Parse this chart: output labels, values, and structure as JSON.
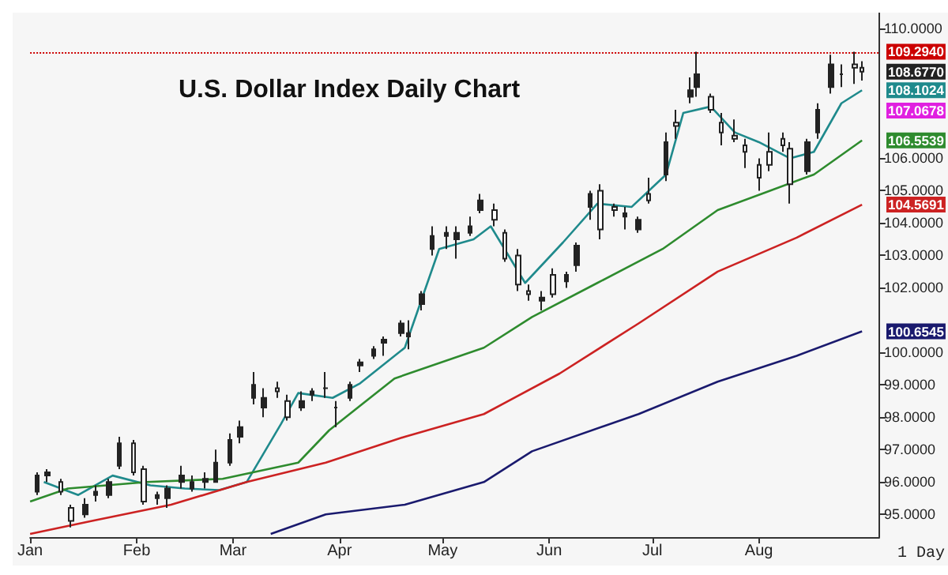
{
  "chart_data": {
    "type": "candlestick",
    "title": "U.S. Dollar Index Daily Chart",
    "series": [
      {
        "color": "#222222",
        "value_labels": [
          null,
          null,
          null,
          null,
          null,
          null,
          null,
          null,
          null,
          null,
          null,
          null,
          null,
          null,
          null,
          null,
          null,
          null,
          null,
          null,
          null,
          null,
          null,
          null,
          null,
          null,
          null,
          null,
          null,
          null,
          null,
          null,
          null,
          null,
          null,
          null,
          null,
          null,
          null,
          null,
          null,
          null,
          null,
          null,
          null,
          null,
          null,
          null,
          null,
          null,
          null,
          null,
          null,
          null,
          null,
          null,
          null,
          null,
          null,
          null,
          null,
          null,
          null,
          null,
          null,
          null,
          null,
          null,
          null,
          "108.6770"
        ],
        "x": [
          "--01-03",
          "--01-06",
          "--01-10",
          "--01-13",
          "--01-17",
          "--01-20",
          "--01-24",
          "--01-27",
          "--01-31",
          "--02-03",
          "--02-07",
          "--02-10",
          "--02-14",
          "--02-17",
          "--02-21",
          "--02-24",
          "--02-28",
          "--03-03",
          "--03-07",
          "--03-10",
          "--03-14",
          "--03-17",
          "--03-21",
          "--03-24",
          "--03-28",
          "--03-31",
          "--04-04",
          "--04-07",
          "--04-11",
          "--04-14",
          "--04-19",
          "--04-21",
          "--04-25",
          "--04-28",
          "--05-02",
          "--05-05",
          "--05-09",
          "--05-12",
          "--05-16",
          "--05-19",
          "--05-23",
          "--05-26",
          "--05-30",
          "--06-02",
          "--06-06",
          "--06-09",
          "--06-13",
          "--06-16",
          "--06-20",
          "--06-23",
          "--06-27",
          "--06-30",
          "--07-05",
          "--07-08",
          "--07-12",
          "--07-14",
          "--07-18",
          "--07-21",
          "--07-25",
          "--07-28",
          "--08-01",
          "--08-04",
          "--08-08",
          "--08-10",
          "--08-15",
          "--08-18",
          "--08-22",
          "--08-25",
          "--08-29",
          "--08-31"
        ],
        "ohlc": [
          [
            95.7,
            96.3,
            95.6,
            96.2
          ],
          [
            96.2,
            96.4,
            96.0,
            96.3
          ],
          [
            96.0,
            96.1,
            95.6,
            95.7
          ],
          [
            95.2,
            95.3,
            94.6,
            94.8
          ],
          [
            95.0,
            95.5,
            94.9,
            95.3
          ],
          [
            95.6,
            95.9,
            95.4,
            95.7
          ],
          [
            95.6,
            96.1,
            95.5,
            96.0
          ],
          [
            96.5,
            97.4,
            96.4,
            97.2
          ],
          [
            97.2,
            97.3,
            96.2,
            96.3
          ],
          [
            96.4,
            96.5,
            95.3,
            95.4
          ],
          [
            95.5,
            95.7,
            95.3,
            95.6
          ],
          [
            95.5,
            95.9,
            95.2,
            95.8
          ],
          [
            96.0,
            96.5,
            95.8,
            96.2
          ],
          [
            95.8,
            96.2,
            95.7,
            96.0
          ],
          [
            96.0,
            96.3,
            95.8,
            96.1
          ],
          [
            96.0,
            97.0,
            96.0,
            96.6
          ],
          [
            96.6,
            97.5,
            96.5,
            97.3
          ],
          [
            97.4,
            97.9,
            97.2,
            97.7
          ],
          [
            98.6,
            99.4,
            98.4,
            99.0
          ],
          [
            98.3,
            98.9,
            98.0,
            98.6
          ],
          [
            98.9,
            99.1,
            98.6,
            98.8
          ],
          [
            98.5,
            98.7,
            97.9,
            98.0
          ],
          [
            98.3,
            98.8,
            98.2,
            98.5
          ],
          [
            98.7,
            98.9,
            98.5,
            98.8
          ],
          [
            98.9,
            99.4,
            98.6,
            98.9
          ],
          [
            98.3,
            98.5,
            97.7,
            98.3
          ],
          [
            98.6,
            99.1,
            98.5,
            99.0
          ],
          [
            99.6,
            99.8,
            99.4,
            99.7
          ],
          [
            99.9,
            100.2,
            99.8,
            100.1
          ],
          [
            100.3,
            100.5,
            99.9,
            100.4
          ],
          [
            100.6,
            101.0,
            100.5,
            100.9
          ],
          [
            100.5,
            101.0,
            100.1,
            100.6
          ],
          [
            101.5,
            101.9,
            101.3,
            101.8
          ],
          [
            103.2,
            103.9,
            103.0,
            103.6
          ],
          [
            103.6,
            103.9,
            103.2,
            103.7
          ],
          [
            103.5,
            103.9,
            102.9,
            103.7
          ],
          [
            103.7,
            104.2,
            103.6,
            103.9
          ],
          [
            104.4,
            104.9,
            104.3,
            104.7
          ],
          [
            104.4,
            104.6,
            103.9,
            104.1
          ],
          [
            103.7,
            103.8,
            102.8,
            102.9
          ],
          [
            103.0,
            103.2,
            101.9,
            102.1
          ],
          [
            101.9,
            102.1,
            101.6,
            101.8
          ],
          [
            101.6,
            101.9,
            101.3,
            101.7
          ],
          [
            102.4,
            102.6,
            101.7,
            101.8
          ],
          [
            102.2,
            102.5,
            102.0,
            102.4
          ],
          [
            102.7,
            103.4,
            102.5,
            103.3
          ],
          [
            104.5,
            105.0,
            104.1,
            104.9
          ],
          [
            105.0,
            105.2,
            103.5,
            103.8
          ],
          [
            104.5,
            104.6,
            104.2,
            104.4
          ],
          [
            104.2,
            104.5,
            103.8,
            104.3
          ],
          [
            103.8,
            104.2,
            103.7,
            104.1
          ],
          [
            104.9,
            105.4,
            104.6,
            104.7
          ],
          [
            105.5,
            106.8,
            105.3,
            106.5
          ],
          [
            107.1,
            107.5,
            106.6,
            107.0
          ],
          [
            107.9,
            108.5,
            107.7,
            108.1
          ],
          [
            108.2,
            109.294,
            107.9,
            108.6
          ],
          [
            107.9,
            108.0,
            107.4,
            107.5
          ],
          [
            107.1,
            107.4,
            106.4,
            106.8
          ],
          [
            106.7,
            107.2,
            106.5,
            106.6
          ],
          [
            106.4,
            106.6,
            105.7,
            106.2
          ],
          [
            105.8,
            106.0,
            105.0,
            105.4
          ],
          [
            106.2,
            106.8,
            105.6,
            105.8
          ],
          [
            106.6,
            106.8,
            106.2,
            106.4
          ],
          [
            106.3,
            106.5,
            104.6,
            105.2
          ],
          [
            105.6,
            106.6,
            105.5,
            106.5
          ],
          [
            106.8,
            107.7,
            106.6,
            107.5
          ],
          [
            108.2,
            109.2,
            108.0,
            108.9
          ],
          [
            108.6,
            108.9,
            108.2,
            108.6
          ],
          [
            108.9,
            109.294,
            108.3,
            108.8
          ],
          [
            108.8,
            109.0,
            108.4,
            108.677
          ]
        ]
      },
      {
        "type": "line",
        "color": "#1f8a8c",
        "x": [
          "--01-05",
          "--01-15",
          "--01-25",
          "--02-05",
          "--02-15",
          "--02-25",
          "--03-05",
          "--03-15",
          "--03-20",
          "--03-30",
          "--04-07",
          "--04-20",
          "--04-30",
          "--05-10",
          "--05-15",
          "--05-25",
          "--06-05",
          "--06-15",
          "--06-25",
          "--07-05",
          "--07-10",
          "--07-18",
          "--07-25",
          "--08-01",
          "--08-10",
          "--08-17",
          "--08-25",
          "--08-31"
        ],
        "values": [
          96.0,
          95.6,
          96.2,
          95.9,
          95.8,
          95.75,
          96.0,
          97.8,
          98.75,
          98.6,
          99.05,
          100.15,
          103.2,
          103.5,
          103.9,
          102.15,
          103.4,
          104.6,
          104.5,
          105.5,
          107.4,
          107.6,
          106.8,
          106.5,
          106.0,
          106.2,
          107.7,
          108.1024
        ],
        "value_labels": [
          null,
          null,
          null,
          null,
          null,
          null,
          null,
          null,
          null,
          null,
          null,
          null,
          null,
          null,
          null,
          null,
          null,
          null,
          null,
          null,
          null,
          null,
          null,
          null,
          null,
          null,
          null,
          "108.1024"
        ]
      },
      {
        "type": "line",
        "color": "#2e8b2e",
        "x": [
          "--01-01",
          "--01-12",
          "--02-04",
          "--02-26",
          "--03-20",
          "--03-29",
          "--04-17",
          "--05-13",
          "--05-27",
          "--06-15",
          "--07-04",
          "--07-20",
          "--08-03",
          "--08-17",
          "--08-31"
        ],
        "values": [
          95.4,
          95.8,
          96.0,
          96.1,
          96.6,
          97.6,
          99.2,
          100.15,
          101.1,
          102.15,
          103.2,
          104.4,
          104.95,
          105.5,
          106.5539
        ],
        "value_labels": [
          null,
          null,
          null,
          null,
          null,
          null,
          null,
          null,
          null,
          null,
          null,
          null,
          null,
          null,
          "106.5539"
        ]
      },
      {
        "type": "line",
        "color": "#cc2222",
        "x": [
          "--01-01",
          "--01-19",
          "--02-11",
          "--03-05",
          "--03-28",
          "--04-20",
          "--05-13",
          "--06-04",
          "--06-27",
          "--07-20",
          "--08-12",
          "--08-31"
        ],
        "values": [
          94.4,
          94.8,
          95.3,
          96.0,
          96.6,
          97.4,
          98.1,
          99.35,
          100.9,
          102.5,
          103.55,
          104.5691
        ],
        "value_labels": [
          null,
          null,
          null,
          null,
          null,
          null,
          null,
          null,
          null,
          null,
          null,
          "104.5691"
        ]
      },
      {
        "type": "line",
        "color": "#1a1a6e",
        "x": [
          "--03-12",
          "--03-28",
          "--04-20",
          "--05-13",
          "--05-27",
          "--06-27",
          "--07-20",
          "--08-12",
          "--08-31"
        ],
        "values": [
          94.4,
          95.0,
          95.3,
          96.0,
          96.95,
          98.1,
          99.1,
          99.9,
          100.6545
        ],
        "value_labels": [
          null,
          null,
          null,
          null,
          null,
          null,
          null,
          null,
          "100.6545"
        ]
      }
    ],
    "xlim": [
      "--01-01",
      "--09-05"
    ],
    "xticks": [
      {
        "value": "--01-01",
        "label": "Jan"
      },
      {
        "value": "--02-01",
        "label": "Feb"
      },
      {
        "value": "--03-01",
        "label": "Mar"
      },
      {
        "value": "--04-01",
        "label": "Apr"
      },
      {
        "value": "--05-01",
        "label": "May"
      },
      {
        "value": "--06-01",
        "label": "Jun"
      },
      {
        "value": "--07-01",
        "label": "Jul"
      },
      {
        "value": "--08-01",
        "label": "Aug"
      }
    ],
    "ylim": [
      94.3,
      110.5
    ],
    "yticks": [
      {
        "value": 95,
        "label": "95.0000"
      },
      {
        "value": 96,
        "label": "96.0000"
      },
      {
        "value": 97,
        "label": "97.0000"
      },
      {
        "value": 98,
        "label": "98.0000"
      },
      {
        "value": 99,
        "label": "99.0000"
      },
      {
        "value": 100,
        "label": "100.0000"
      },
      {
        "value": 102,
        "label": "102.0000"
      },
      {
        "value": 103,
        "label": "103.0000"
      },
      {
        "value": 104,
        "label": "104.0000"
      },
      {
        "value": 105,
        "label": "105.0000"
      },
      {
        "value": 106,
        "label": "106.0000"
      },
      {
        "value": 110,
        "label": "110.0000"
      }
    ],
    "ref_lines": [
      {
        "axis": "y",
        "value": 109.294,
        "label": "109.2940",
        "color": "#cc0000",
        "line_style": "dotted"
      }
    ],
    "annotations": [
      "107.0678",
      "1 Day"
    ],
    "grid": false
  }
}
